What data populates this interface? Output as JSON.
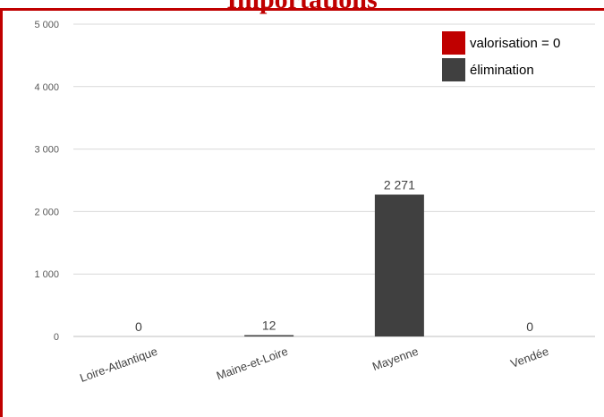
{
  "chart_data": {
    "type": "bar",
    "title": "Importations",
    "categories": [
      "Loire-Atlantique",
      "Maine-et-Loire",
      "Mayenne",
      "Vendée"
    ],
    "series": [
      {
        "name": "valorisation = 0",
        "color": "#c00000",
        "values": [
          0,
          0,
          0,
          0
        ]
      },
      {
        "name": "élimination",
        "color": "#404040",
        "values": [
          0,
          12,
          2271,
          0
        ]
      }
    ],
    "data_labels": [
      "0",
      "12",
      "2 271",
      "0"
    ],
    "ylim": [
      0,
      5000
    ],
    "yticks": [
      0,
      1000,
      2000,
      3000,
      4000,
      5000
    ],
    "ytick_labels": [
      "0",
      "1 000",
      "2 000",
      "3 000",
      "4 000",
      "5 000"
    ],
    "grid": true,
    "legend_position": "top-right",
    "xlabel": "",
    "ylabel": ""
  }
}
